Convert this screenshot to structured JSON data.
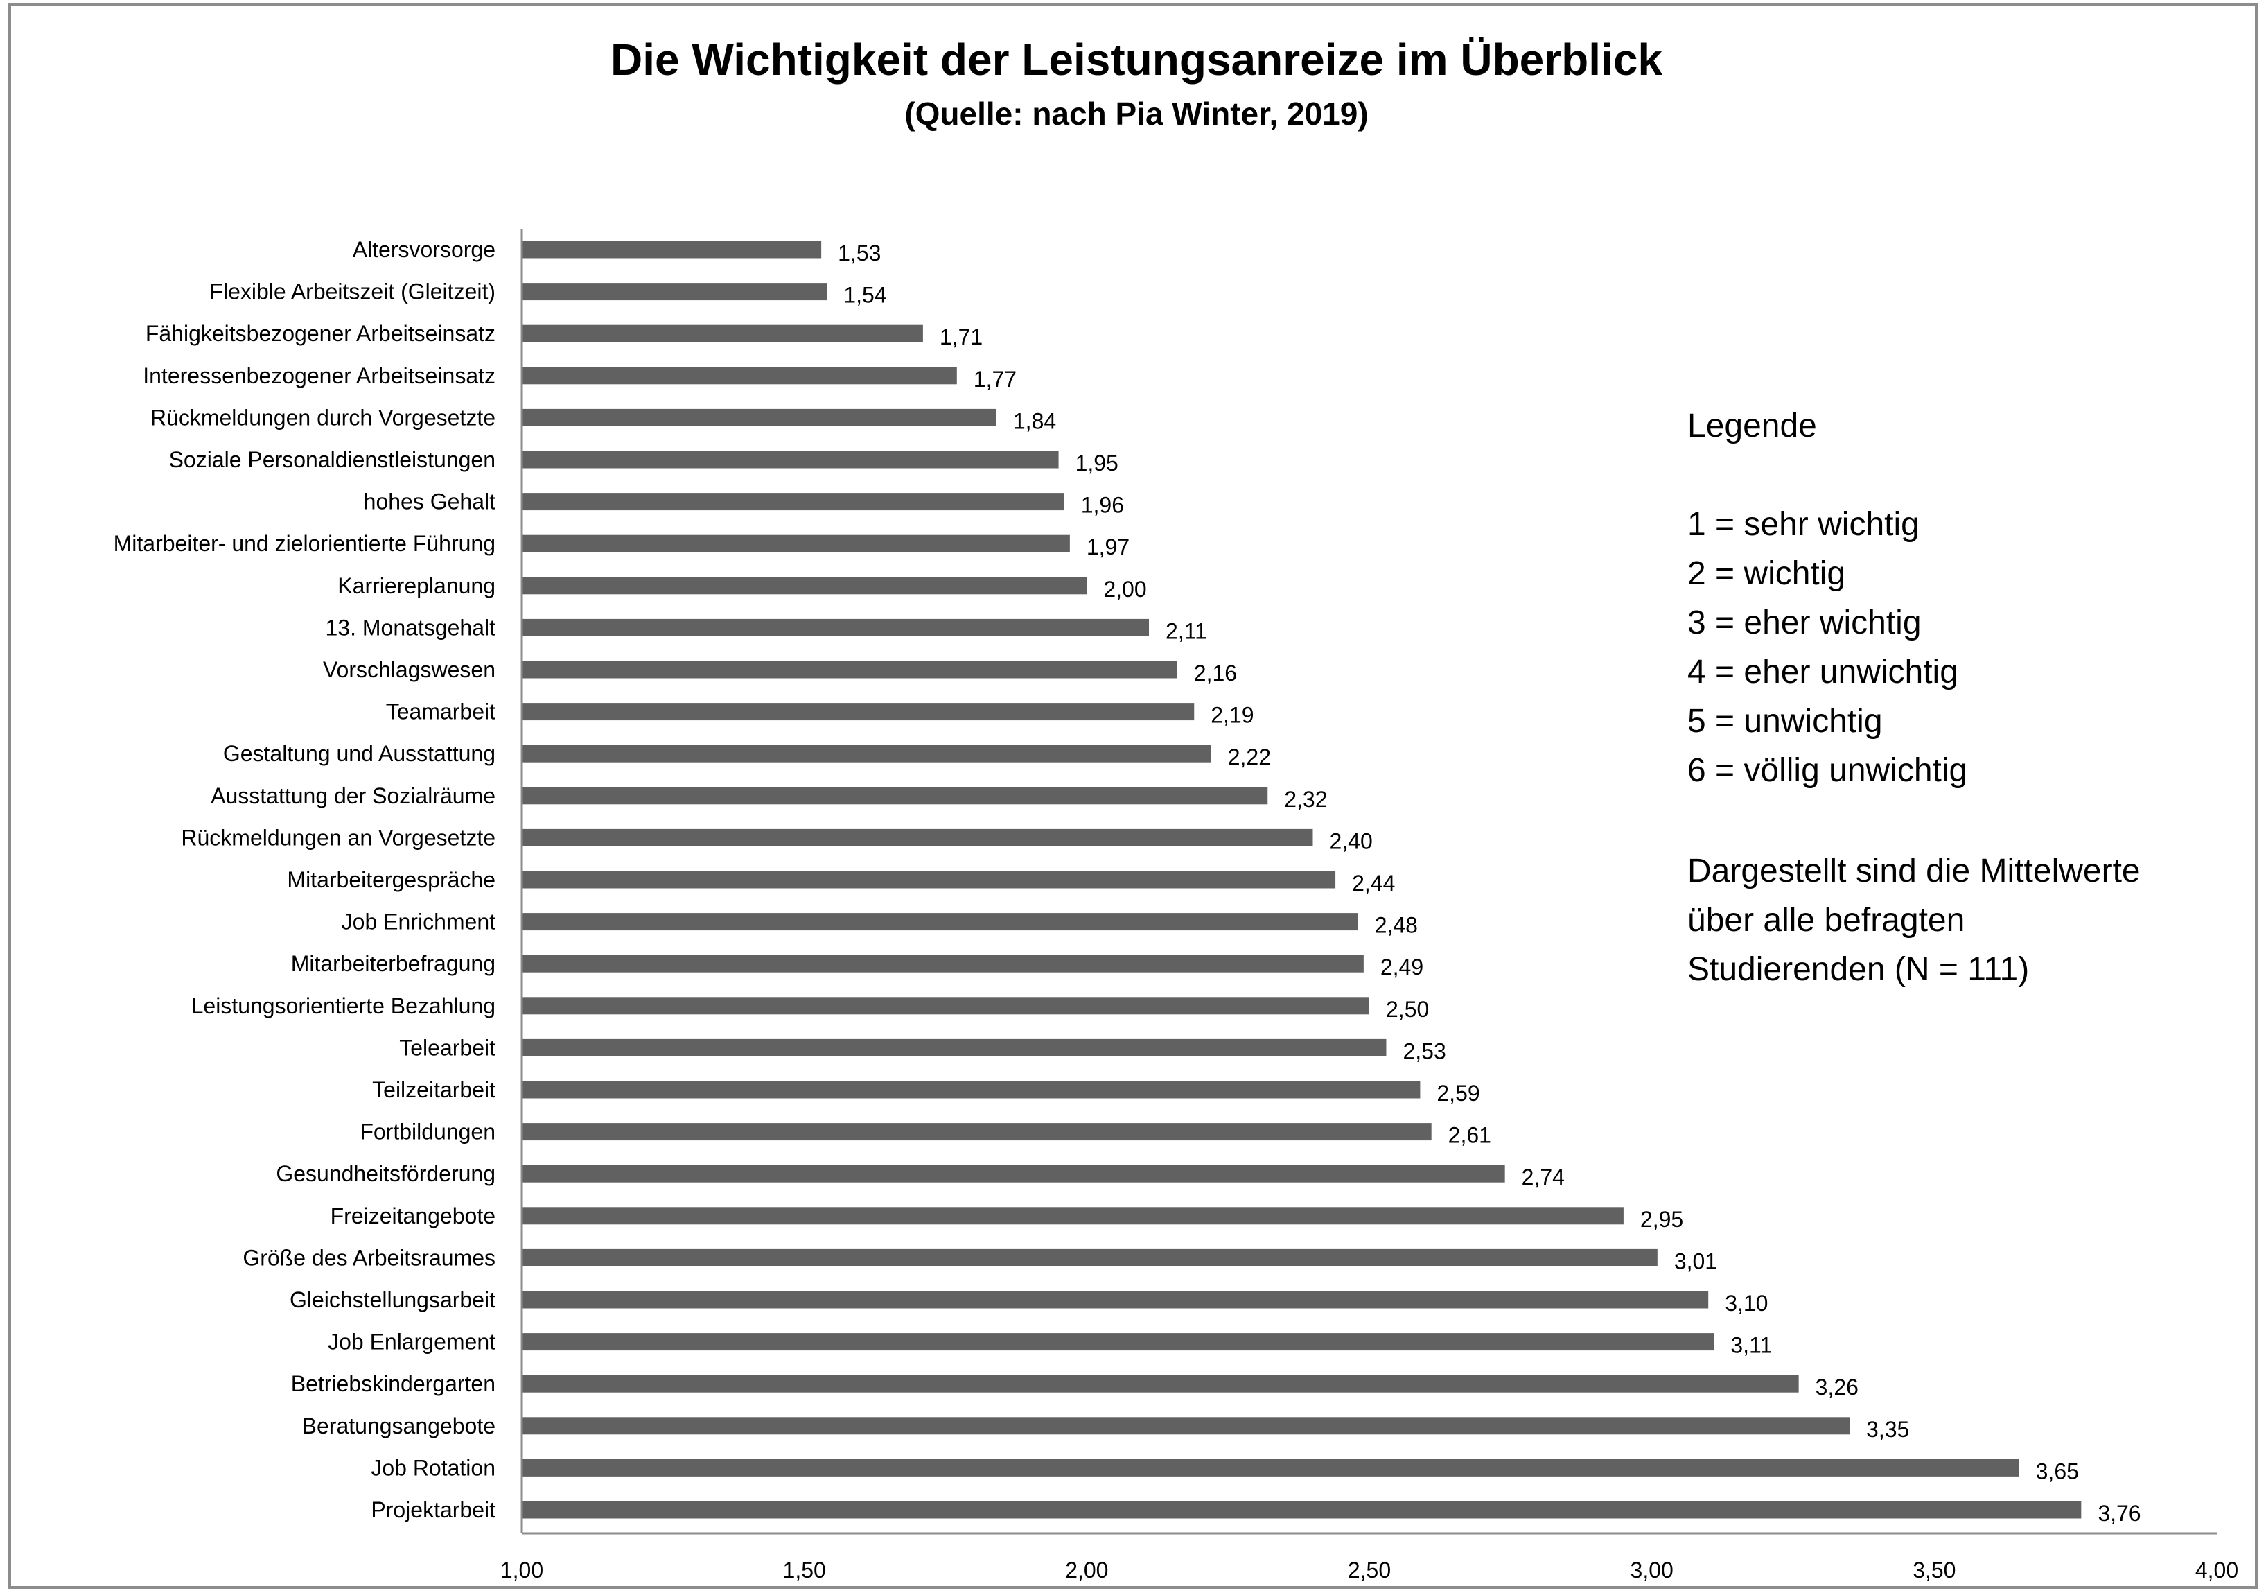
{
  "chart_data": {
    "type": "bar",
    "orientation": "horizontal",
    "title": "Die Wichtigkeit der Leistungsanreize im Überblick",
    "subtitle": "(Quelle: nach Pia Winter, 2019)",
    "categories": [
      "Altersvorsorge",
      "Flexible Arbeitszeit (Gleitzeit)",
      "Fähigkeitsbezogener Arbeitseinsatz",
      "Interessenbezogener Arbeitseinsatz",
      "Rückmeldungen durch Vorgesetzte",
      "Soziale Personaldienstleistungen",
      "hohes Gehalt",
      "Mitarbeiter- und zielorientierte Führung",
      "Karriereplanung",
      "13. Monatsgehalt",
      "Vorschlagswesen",
      "Teamarbeit",
      "Gestaltung und Ausstattung",
      "Ausstattung der Sozialräume",
      "Rückmeldungen an Vorgesetzte",
      "Mitarbeitergespräche",
      "Job Enrichment",
      "Mitarbeiterbefragung",
      "Leistungsorientierte Bezahlung",
      "Telearbeit",
      "Teilzeitarbeit",
      "Fortbildungen",
      "Gesundheitsförderung",
      "Freizeitangebote",
      "Größe des Arbeitsraumes",
      "Gleichstellungsarbeit",
      "Job Enlargement",
      "Betriebskindergarten",
      "Beratungsangebote",
      "Job Rotation",
      "Projektarbeit"
    ],
    "values": [
      1.53,
      1.54,
      1.71,
      1.77,
      1.84,
      1.95,
      1.96,
      1.97,
      2.0,
      2.11,
      2.16,
      2.19,
      2.22,
      2.32,
      2.4,
      2.44,
      2.48,
      2.49,
      2.5,
      2.53,
      2.59,
      2.61,
      2.74,
      2.95,
      3.01,
      3.1,
      3.11,
      3.26,
      3.35,
      3.65,
      3.76
    ],
    "value_labels": [
      "1,53",
      "1,54",
      "1,71",
      "1,77",
      "1,84",
      "1,95",
      "1,96",
      "1,97",
      "2,00",
      "2,11",
      "2,16",
      "2,19",
      "2,22",
      "2,32",
      "2,40",
      "2,44",
      "2,48",
      "2,49",
      "2,50",
      "2,53",
      "2,59",
      "2,61",
      "2,74",
      "2,95",
      "3,01",
      "3,10",
      "3,11",
      "3,26",
      "3,35",
      "3,65",
      "3,76"
    ],
    "xlim": [
      1.0,
      4.0
    ],
    "xticks": [
      1.0,
      1.5,
      2.0,
      2.5,
      3.0,
      3.5,
      4.0
    ],
    "xtick_labels": [
      "1,00",
      "1,50",
      "2,00",
      "2,50",
      "3,00",
      "3,50",
      "4,00"
    ],
    "xlabel": "",
    "ylabel": "",
    "grid": false,
    "bar_color": "#616161",
    "legend_placement": "right",
    "legend": {
      "heading": "Legende",
      "items": [
        "1 = sehr wichtig",
        "2 = wichtig",
        "3 = eher wichtig",
        "4 = eher unwichtig",
        "5 = unwichtig",
        "6 = völlig unwichtig"
      ],
      "note": [
        "Dargestellt sind die Mittelwerte",
        "über alle befragten",
        "Studierenden (N = 111)"
      ]
    }
  }
}
